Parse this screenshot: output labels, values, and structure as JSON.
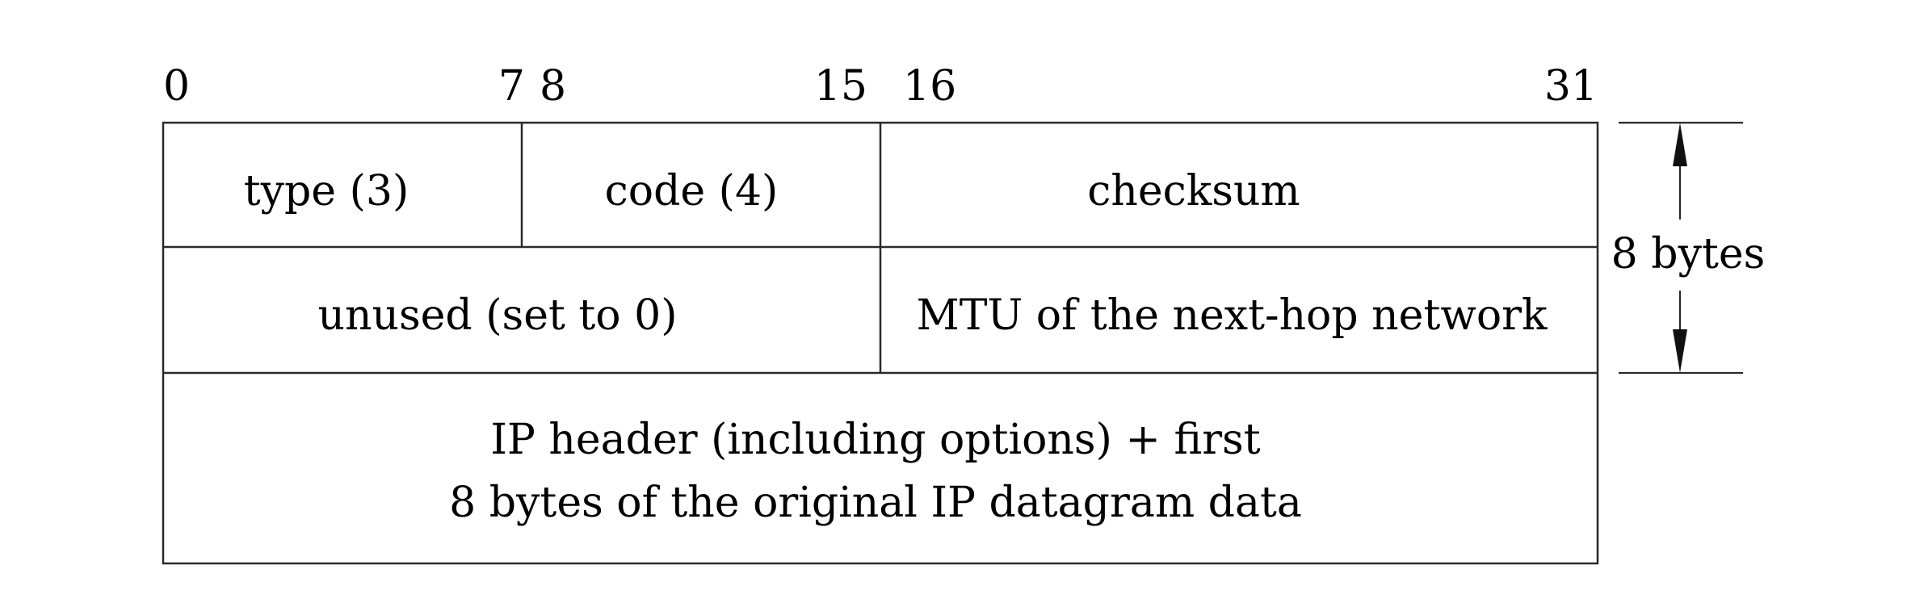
{
  "diagram": {
    "bit_labels": {
      "b0": "0",
      "b7": "7",
      "b8": "8",
      "b15": "15",
      "b16": "16",
      "b31": "31"
    },
    "fields": {
      "type": "type (3)",
      "code": "code (4)",
      "checksum": "checksum",
      "unused": "unused (set to 0)",
      "mtu": "MTU of the next-hop network",
      "ip_header_line1": "IP header (including options) + first",
      "ip_header_line2": "8 bytes of the original IP datagram data"
    },
    "size_label": "8 bytes"
  }
}
